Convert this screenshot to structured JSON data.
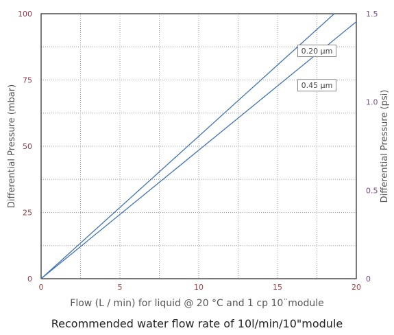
{
  "chart_data": {
    "type": "line",
    "xlabel": "Flow (L / min) for liquid @ 20 °C and 1 cp 10¨module",
    "ylabel": "Differential Pressure (mbar)",
    "y2label": "Differential Pressure (psi)",
    "caption": "Recommended water flow rate of 10l/min/10\"module",
    "xlim": [
      0,
      20
    ],
    "ylim": [
      0,
      100
    ],
    "y2lim": [
      0,
      1.5
    ],
    "x_ticks": [
      "0",
      "5",
      "10",
      "15",
      "20"
    ],
    "y_ticks": [
      "0",
      "25",
      "50",
      "75",
      "100"
    ],
    "y2_ticks": [
      "0",
      "0.5",
      "1.0",
      "1.5"
    ],
    "grid": true,
    "series": [
      {
        "name": "0.20 µm",
        "x": [
          0,
          18.6
        ],
        "y": [
          0,
          100
        ]
      },
      {
        "name": "0.45 µm",
        "x": [
          0,
          20
        ],
        "y": [
          0,
          97
        ]
      }
    ],
    "colors": {
      "line": "#3f72b5",
      "left_axis": "#8a3a4a",
      "right_axis": "#7a4a88",
      "x_axis": "#a04040"
    }
  }
}
